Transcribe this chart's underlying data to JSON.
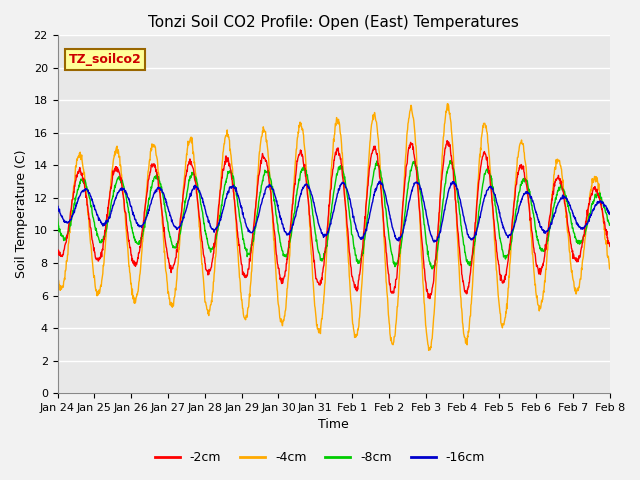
{
  "title": "Tonzi Soil CO2 Profile: Open (East) Temperatures",
  "xlabel": "Time",
  "ylabel": "Soil Temperature (C)",
  "ylim": [
    0,
    22
  ],
  "yticks": [
    0,
    2,
    4,
    6,
    8,
    10,
    12,
    14,
    16,
    18,
    20,
    22
  ],
  "xtick_labels": [
    "Jan 24",
    "Jan 25",
    "Jan 26",
    "Jan 27",
    "Jan 28",
    "Jan 29",
    "Jan 30",
    "Jan 31",
    "Feb 1",
    "Feb 2",
    "Feb 3",
    "Feb 4",
    "Feb 5",
    "Feb 6",
    "Feb 7",
    "Feb 8"
  ],
  "colors": {
    "-2cm": "#ff0000",
    "-4cm": "#ffaa00",
    "-8cm": "#00cc00",
    "-16cm": "#0000cc"
  },
  "legend_label": "TZ_soilco2",
  "legend_box_color": "#ffff99",
  "legend_box_edge": "#996600",
  "plot_bg_color": "#e8e8e8",
  "grid_color": "#ffffff",
  "fig_bg_color": "#f2f2f2",
  "title_fontsize": 11,
  "axis_label_fontsize": 9,
  "tick_fontsize": 8,
  "legend_fontsize": 9,
  "n_days": 15,
  "points_per_day": 96
}
